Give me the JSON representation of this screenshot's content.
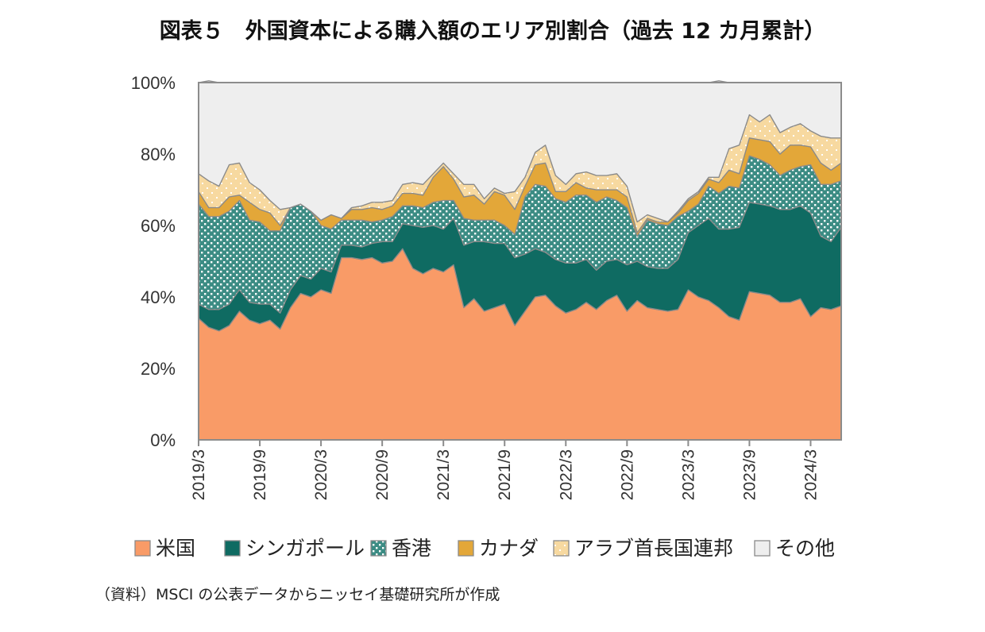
{
  "chart_data": {
    "type": "area",
    "title": "図表５　外国資本による購入額のエリア別割合（過去 12 カ月累計）",
    "source": "（資料）MSCI の公表データからニッセイ基礎研究所が作成",
    "ylim": [
      0,
      100
    ],
    "y_ticks": [
      "0%",
      "20%",
      "40%",
      "60%",
      "80%",
      "100%"
    ],
    "x_tick_labels": [
      "2019/3",
      "2019/9",
      "2020/3",
      "2020/9",
      "2021/3",
      "2021/9",
      "2022/3",
      "2022/9",
      "2023/3",
      "2023/9",
      "2024/3"
    ],
    "x": [
      "2019/3",
      "2019/4",
      "2019/5",
      "2019/6",
      "2019/7",
      "2019/8",
      "2019/9",
      "2019/10",
      "2019/11",
      "2019/12",
      "2020/1",
      "2020/2",
      "2020/3",
      "2020/4",
      "2020/5",
      "2020/6",
      "2020/7",
      "2020/8",
      "2020/9",
      "2020/10",
      "2020/11",
      "2020/12",
      "2021/1",
      "2021/2",
      "2021/3",
      "2021/4",
      "2021/5",
      "2021/6",
      "2021/7",
      "2021/8",
      "2021/9",
      "2021/10",
      "2021/11",
      "2021/12",
      "2022/1",
      "2022/2",
      "2022/3",
      "2022/4",
      "2022/5",
      "2022/6",
      "2022/7",
      "2022/8",
      "2022/9",
      "2022/10",
      "2022/11",
      "2022/12",
      "2023/1",
      "2023/2",
      "2023/3",
      "2023/4",
      "2023/5",
      "2023/6",
      "2023/7",
      "2023/8",
      "2023/9",
      "2023/10",
      "2023/11",
      "2023/12",
      "2024/1",
      "2024/2",
      "2024/3",
      "2024/4",
      "2024/5",
      "2024/6"
    ],
    "stacked": true,
    "grid": false,
    "legend_position": "bottom",
    "series": [
      {
        "name": "米国",
        "color": "#F99B67",
        "values": [
          34,
          31.5,
          30.5,
          32,
          36,
          33.5,
          32.5,
          33.5,
          31,
          37,
          41,
          40,
          42,
          41,
          51,
          51,
          50.5,
          51,
          49.5,
          50,
          53.5,
          48,
          46.5,
          48,
          47,
          49,
          37,
          39.5,
          36,
          37,
          38,
          32,
          36,
          40,
          40.5,
          37.5,
          35.5,
          36.5,
          38.5,
          36.5,
          39,
          40.5,
          36,
          39,
          37,
          36.5,
          36,
          36.5,
          42,
          40,
          39,
          37,
          34.5,
          33.5,
          41.5,
          41,
          40.5,
          38.5,
          38.5,
          39.5,
          34.5,
          37,
          36.5,
          37.5
        ]
      },
      {
        "name": "シンガポール",
        "color": "#0F6B62",
        "values": [
          4,
          5,
          6,
          6,
          6,
          5,
          5.5,
          4.5,
          4.5,
          5,
          5,
          5,
          6,
          6,
          3.5,
          3.5,
          3.5,
          4,
          6,
          5.5,
          7,
          12,
          13,
          12,
          12,
          13,
          17.5,
          16,
          19.5,
          18,
          17,
          19,
          16,
          13.5,
          12,
          13,
          14,
          13,
          12,
          11,
          11,
          10,
          13,
          11,
          11.5,
          11.5,
          12,
          14,
          16,
          20,
          23,
          22,
          24.5,
          26,
          25,
          25,
          25,
          26,
          26,
          26,
          29,
          20,
          19,
          22
        ]
      },
      {
        "name": "香港",
        "color": "#3C8C84",
        "values": [
          28,
          26,
          26,
          26,
          25,
          23,
          23,
          20.5,
          23,
          23,
          20,
          19,
          12,
          12,
          7,
          7,
          7.5,
          6,
          6,
          7,
          5,
          5.5,
          5.5,
          6.5,
          8,
          5,
          7.5,
          6,
          6,
          6.5,
          5,
          6.5,
          16,
          18,
          18.5,
          17,
          17,
          19,
          18,
          19,
          18,
          16.5,
          16,
          7,
          13,
          12.5,
          12,
          12,
          6,
          6,
          9,
          10,
          12,
          11,
          13,
          12.5,
          11.5,
          9.5,
          11,
          11,
          13.5,
          14.5,
          16,
          13
        ]
      },
      {
        "name": "カナダ",
        "color": "#E3A739",
        "values": [
          3.5,
          2.5,
          2.5,
          4,
          1.5,
          5,
          3.5,
          5,
          1.5,
          0,
          0,
          0,
          1.5,
          4,
          0.5,
          3,
          3,
          4,
          3,
          3,
          3.5,
          3.5,
          3.5,
          7,
          9.5,
          6,
          6,
          7,
          4.5,
          8,
          8.5,
          7,
          3,
          5.5,
          6.5,
          2,
          3,
          3.5,
          2,
          3.5,
          2,
          3,
          3,
          1,
          0.5,
          0.5,
          1,
          1,
          3,
          3,
          2,
          3,
          4.5,
          4,
          5,
          5.5,
          6.5,
          6,
          7,
          6,
          5,
          6,
          4,
          5
        ]
      },
      {
        "name": "アラブ首長国連邦",
        "color": "#F7D9A0",
        "values": [
          5,
          7.5,
          6,
          9,
          9,
          5.5,
          5.5,
          3.5,
          4.5,
          0,
          0,
          0,
          0,
          0,
          0,
          0.5,
          1,
          1.5,
          2,
          1.5,
          2.5,
          3,
          3,
          1,
          1,
          1.5,
          3.5,
          3,
          1.5,
          1,
          0.5,
          5,
          2.5,
          3.5,
          5,
          4.5,
          2,
          2.5,
          4.5,
          4,
          4,
          4.5,
          3,
          3,
          1,
          1,
          0,
          0.5,
          0.5,
          0.5,
          0.5,
          1.5,
          6,
          8,
          6.5,
          5,
          7.5,
          6,
          5,
          6,
          4.5,
          7.5,
          9,
          7
        ]
      },
      {
        "name": "その他",
        "color": "#EEEEEE",
        "values": [
          25.5,
          28,
          29,
          23,
          22.5,
          28,
          30,
          33,
          35.5,
          35,
          34,
          36,
          38.5,
          37,
          38,
          35,
          34.5,
          33.5,
          33.5,
          33,
          28.5,
          28,
          28.5,
          25.5,
          22.5,
          25.5,
          28.5,
          28.5,
          32.5,
          29.5,
          31,
          30.5,
          26.5,
          19.5,
          17.5,
          26,
          28.5,
          25.5,
          25,
          26,
          26,
          25.5,
          29,
          39,
          37,
          38,
          39,
          36,
          32.5,
          30.5,
          26.5,
          27,
          18.5,
          17.5,
          9,
          11,
          9,
          14,
          12.5,
          11.5,
          13.5,
          15,
          15.5,
          15.5
        ]
      }
    ]
  }
}
